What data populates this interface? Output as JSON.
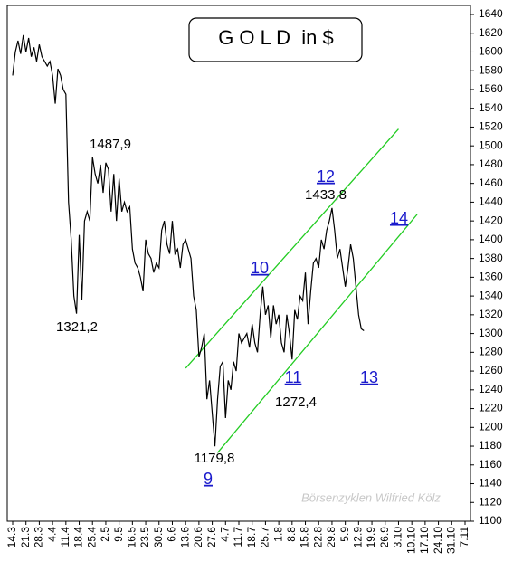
{
  "chart_data": {
    "type": "line",
    "title": "G O L D  in $",
    "watermark": "Börsenzyklen Wilfried Kölz",
    "color": "#000000",
    "categories": [
      "14.3",
      null,
      null,
      null,
      null,
      "21.3",
      null,
      null,
      null,
      null,
      "28.3",
      null,
      null,
      null,
      null,
      "4.4",
      null,
      null,
      null,
      null,
      "11.4",
      null,
      null,
      null,
      null,
      "18.4",
      null,
      null,
      null,
      null,
      "25.4",
      null,
      null,
      null,
      null,
      "2.5",
      null,
      null,
      null,
      null,
      "9.5",
      null,
      null,
      null,
      null,
      "16.5",
      null,
      null,
      null,
      null,
      "23.5",
      null,
      null,
      null,
      null,
      "30.5",
      null,
      null,
      null,
      null,
      "6.6",
      null,
      null,
      null,
      null,
      "13.6",
      null,
      null,
      null,
      null,
      "20.6",
      null,
      null,
      null,
      null,
      "27.6",
      null,
      null,
      null,
      null,
      "4.7",
      null,
      null,
      null,
      null,
      "11.7",
      null,
      null,
      null,
      null,
      "18.7",
      null,
      null,
      null,
      null,
      "25.7",
      null,
      null,
      null,
      null,
      "1.8",
      null,
      null,
      null,
      null,
      "8.8",
      null,
      null,
      null,
      null,
      "15.8",
      null,
      null,
      null,
      null,
      "22.8",
      null,
      null,
      null,
      null,
      "29.8",
      null,
      null,
      null,
      null,
      "5.9",
      null,
      null,
      null,
      null,
      "12.9",
      null,
      null,
      null,
      null,
      "19.9",
      null,
      null,
      null,
      null,
      "26.9",
      null,
      null,
      null,
      null,
      "3.10",
      null,
      null,
      null,
      null,
      "10.10",
      null,
      null,
      null,
      null,
      "17.10",
      null,
      null,
      null,
      null,
      "24.10",
      null,
      null,
      null,
      null,
      "31.10",
      null,
      null,
      null,
      null,
      "7.11"
    ],
    "values": [
      1575,
      1600,
      1612,
      1598,
      1618,
      1600,
      1615,
      1595,
      1605,
      1590,
      1608,
      1595,
      1590,
      1585,
      1590,
      1575,
      1545,
      1582,
      1575,
      1560,
      1555,
      1440,
      1400,
      1340,
      1321.2,
      1405,
      1336,
      1420,
      1430,
      1420,
      1487.9,
      1470,
      1460,
      1480,
      1450,
      1482,
      1475,
      1430,
      1470,
      1420,
      1465,
      1430,
      1440,
      1430,
      1435,
      1390,
      1375,
      1370,
      1360,
      1345,
      1400,
      1385,
      1380,
      1365,
      1375,
      1370,
      1410,
      1420,
      1395,
      1385,
      1420,
      1385,
      1390,
      1370,
      1395,
      1400,
      1390,
      1380,
      1340,
      1325,
      1275,
      1285,
      1300,
      1230,
      1250,
      1215,
      1179.8,
      1230,
      1265,
      1270,
      1210,
      1250,
      1240,
      1270,
      1260,
      1300,
      1290,
      1295,
      1300,
      1285,
      1310,
      1290,
      1280,
      1320,
      1350,
      1320,
      1330,
      1295,
      1330,
      1310,
      1320,
      1290,
      1280,
      1320,
      1300,
      1272.4,
      1325,
      1315,
      1340,
      1335,
      1365,
      1310,
      1345,
      1375,
      1380,
      1370,
      1400,
      1390,
      1410,
      1420,
      1433.8,
      1410,
      1380,
      1390,
      1370,
      1350,
      1370,
      1395,
      1380,
      1350,
      1320,
      1305,
      1303,
      null,
      null,
      null,
      null,
      null,
      null,
      null,
      null,
      null,
      null,
      null,
      null,
      null,
      null,
      null,
      null,
      null,
      null,
      null,
      null,
      null,
      null,
      null,
      null,
      null,
      null,
      null,
      null,
      null,
      null,
      null,
      null,
      null,
      null,
      null,
      null,
      null,
      null
    ],
    "value_labels": [
      null,
      null,
      null,
      null,
      null,
      null,
      null,
      null,
      null,
      null,
      null,
      null,
      null,
      null,
      null,
      null,
      null,
      null,
      null,
      null,
      null,
      null,
      null,
      null,
      "1321,2",
      null,
      null,
      null,
      null,
      null,
      "1487,9",
      null,
      null,
      null,
      null,
      null,
      null,
      null,
      null,
      null,
      null,
      null,
      null,
      null,
      null,
      null,
      null,
      null,
      null,
      null,
      null,
      null,
      null,
      null,
      null,
      null,
      null,
      null,
      null,
      null,
      null,
      null,
      null,
      null,
      null,
      null,
      null,
      null,
      null,
      null,
      null,
      null,
      null,
      null,
      null,
      null,
      "1179,8",
      null,
      null,
      null,
      null,
      null,
      null,
      null,
      null,
      null,
      null,
      null,
      null,
      null,
      null,
      null,
      null,
      null,
      null,
      null,
      null,
      null,
      null,
      null,
      null,
      null,
      null,
      null,
      null,
      "1272,4",
      null,
      null,
      null,
      null,
      null,
      null,
      null,
      null,
      null,
      null,
      null,
      null,
      null,
      null,
      "1433,8",
      null,
      null,
      null,
      null,
      null,
      null,
      null,
      null,
      null,
      null,
      null,
      null,
      null,
      null,
      null,
      null,
      null,
      null,
      null,
      null,
      null,
      null,
      null,
      null,
      null,
      null,
      null,
      null,
      null,
      null,
      null,
      null,
      null,
      null,
      null,
      null,
      null,
      null,
      null,
      null,
      null,
      null,
      null,
      null,
      null,
      null,
      null,
      null,
      null,
      null
    ],
    "wave_labels": [
      "9",
      "10",
      "11",
      "12",
      "13",
      "14"
    ],
    "channel_color": "#22cc22",
    "channels": [
      {
        "x": [
          65,
          145
        ],
        "values": [
          1263,
          1518
        ]
      },
      {
        "x": [
          77,
          152
        ],
        "values": [
          1173,
          1427
        ]
      }
    ],
    "ylim": [
      1100,
      1640
    ],
    "yticks": [
      1100,
      1120,
      1140,
      1160,
      1180,
      1200,
      1220,
      1240,
      1260,
      1280,
      1300,
      1320,
      1340,
      1360,
      1380,
      1400,
      1420,
      1440,
      1460,
      1480,
      1500,
      1520,
      1540,
      1560,
      1580,
      1600,
      1620,
      1640
    ]
  }
}
